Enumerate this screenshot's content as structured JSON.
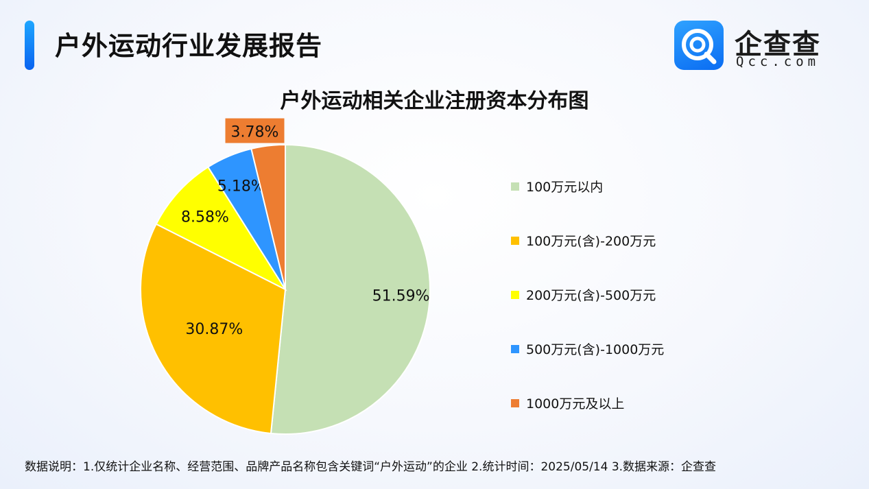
{
  "header": {
    "report_title": "户外运动行业发展报告",
    "logo_name": "企查查",
    "logo_domain": "Qcc.com"
  },
  "colors": {
    "accent": "#0a63f0",
    "slice_colors": [
      "#c5e0b4",
      "#ffc000",
      "#ffff00",
      "#2e95ff",
      "#ed7d31"
    ]
  },
  "chart_data": {
    "type": "pie",
    "title": "户外运动相关企业注册资本分布图",
    "categories": [
      "100万元以内",
      "100万元(含)-200万元",
      "200万元(含)-500万元",
      "500万元(含)-1000万元",
      "1000万元及以上"
    ],
    "values": [
      51.59,
      30.87,
      8.58,
      5.18,
      3.78
    ],
    "labels": [
      "51.59%",
      "30.87%",
      "8.58%",
      "5.18%",
      "3.78%"
    ],
    "legend_position": "right"
  },
  "footnote": "数据说明：1.仅统计企业名称、经营范围、品牌产品名称包含关键词“户外运动”的企业   2.统计时间：2025/05/14    3.数据来源：企查查"
}
